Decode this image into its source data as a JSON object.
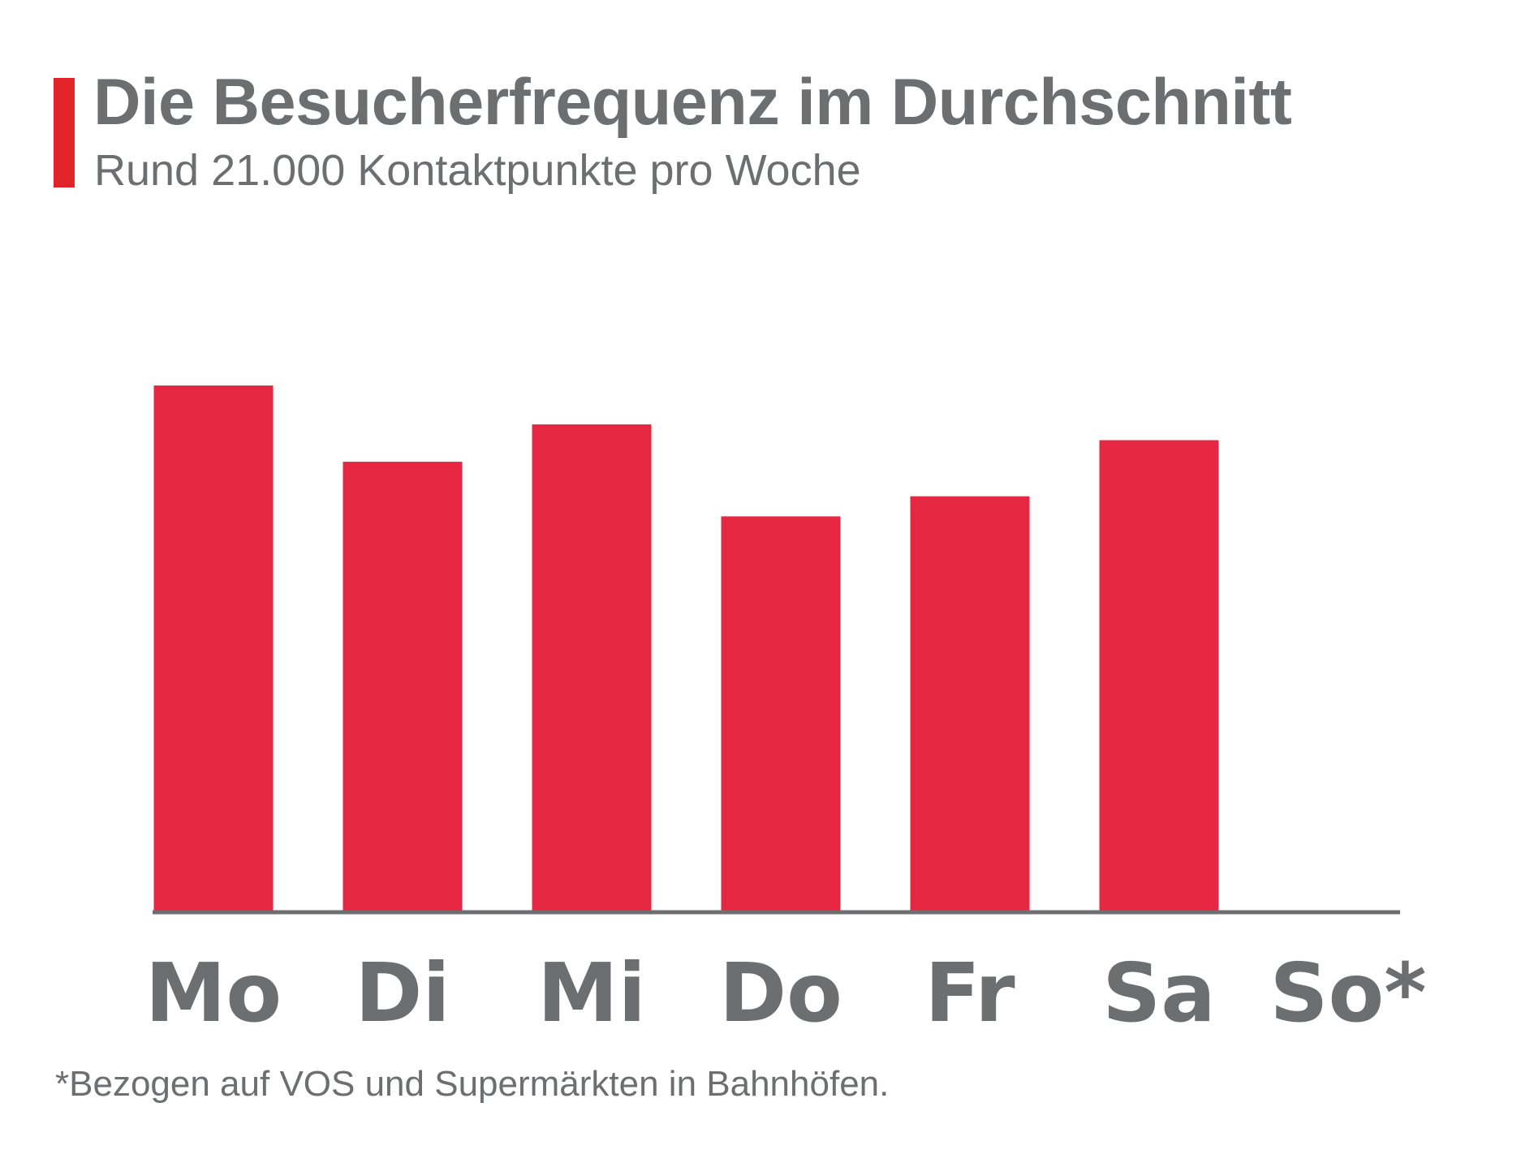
{
  "header": {
    "title": "Die Besucherfrequenz im Durchschnitt",
    "subtitle": "Rund 21.000 Kontaktpunkte pro Woche"
  },
  "footnote": "*Bezogen auf VOS und Supermärkten in Bahnhöfen.",
  "colors": {
    "bar": "#e52741",
    "accent": "#e0242a",
    "text": "#6d6e70",
    "axis": "#6d6e70"
  },
  "chart_data": {
    "type": "bar",
    "title": "Die Besucherfrequenz im Durchschnitt",
    "subtitle": "Rund 21.000 Kontaktpunkte pro Woche",
    "categories": [
      "Mo",
      "Di",
      "Mi",
      "Do",
      "Fr",
      "Sa",
      "So*"
    ],
    "values": [
      3650,
      3120,
      3380,
      2740,
      2880,
      3270,
      0
    ],
    "xlabel": "",
    "ylabel": "",
    "ylim": [
      0,
      3650
    ],
    "grid": false,
    "legend": "none"
  }
}
